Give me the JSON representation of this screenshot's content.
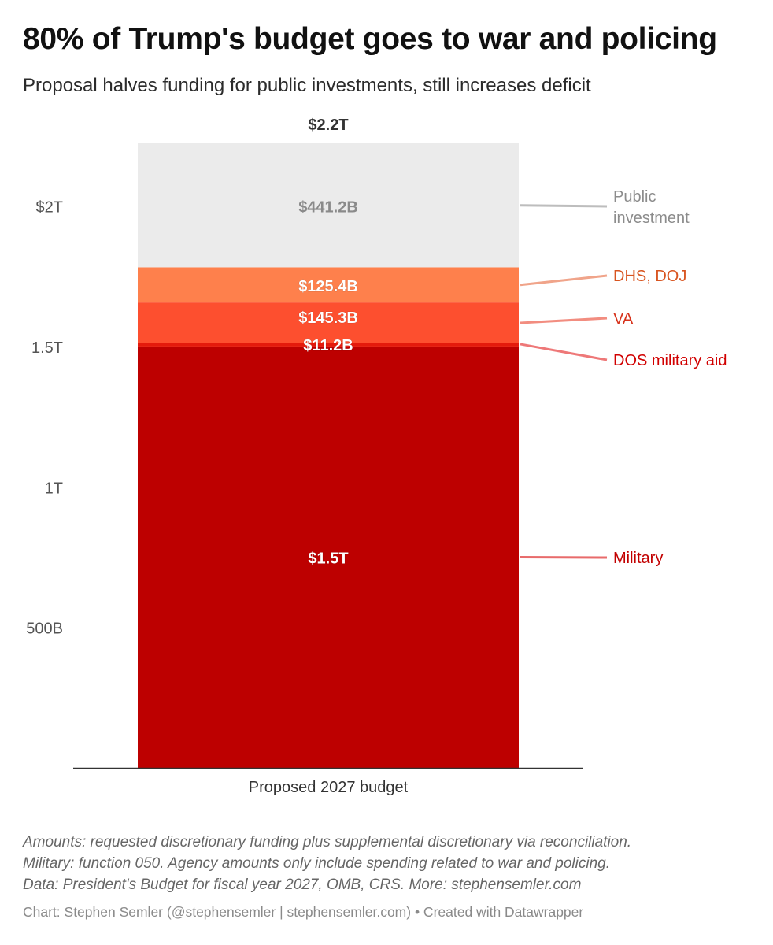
{
  "header": {
    "title": "80% of Trump's budget goes to war and policing",
    "subtitle": "Proposal halves funding for public investments, still increases deficit"
  },
  "chart_data": {
    "type": "bar",
    "stacked": true,
    "categories": [
      "Proposed 2027 budget"
    ],
    "total_label": "$2.2T",
    "ylim": [
      0,
      2200
    ],
    "y_unit": "billions USD",
    "y_ticks": [
      {
        "value": 500,
        "label": "500B"
      },
      {
        "value": 1000,
        "label": "1T"
      },
      {
        "value": 1500,
        "label": "1.5T"
      },
      {
        "value": 2000,
        "label": "$2T"
      }
    ],
    "series": [
      {
        "name": "Military",
        "value": 1500,
        "label": "$1.5T",
        "legend": "Military",
        "color": "#bd0000",
        "legend_color": "#c20000",
        "line_color": "#e86b6b"
      },
      {
        "name": "DOS military aid",
        "value": 11.2,
        "label": "$11.2B",
        "legend": "DOS military aid",
        "color": "#e41a0c",
        "legend_color": "#d10000",
        "line_color": "#ee7878"
      },
      {
        "name": "VA",
        "value": 145.3,
        "label": "$145.3B",
        "legend": "VA",
        "color": "#fd4f2f",
        "legend_color": "#d7331c",
        "line_color": "#f28d80"
      },
      {
        "name": "DHS, DOJ",
        "value": 125.4,
        "label": "$125.4B",
        "legend": "DHS, DOJ",
        "color": "#fe804c",
        "legend_color": "#d8541f",
        "line_color": "#f0a48a"
      },
      {
        "name": "Public investment",
        "value": 441.2,
        "label": "$441.2B",
        "legend": "Public\ninvestment",
        "color": "#ebebeb",
        "legend_color": "#8c8c8c",
        "line_color": "#bdbdbd"
      }
    ],
    "xlabel": "",
    "ylabel": ""
  },
  "notes": {
    "line1": "Amounts: requested discretionary funding plus supplemental discretionary via reconciliation.",
    "line2": "Military: function 050. Agency amounts only include spending related to war and policing.",
    "line3": "Data: President's Budget for fiscal year 2027, OMB, CRS. More: stephensemler.com"
  },
  "credit": "Chart: Stephen Semler (@stephensemler | stephensemler.com) • Created with Datawrapper"
}
